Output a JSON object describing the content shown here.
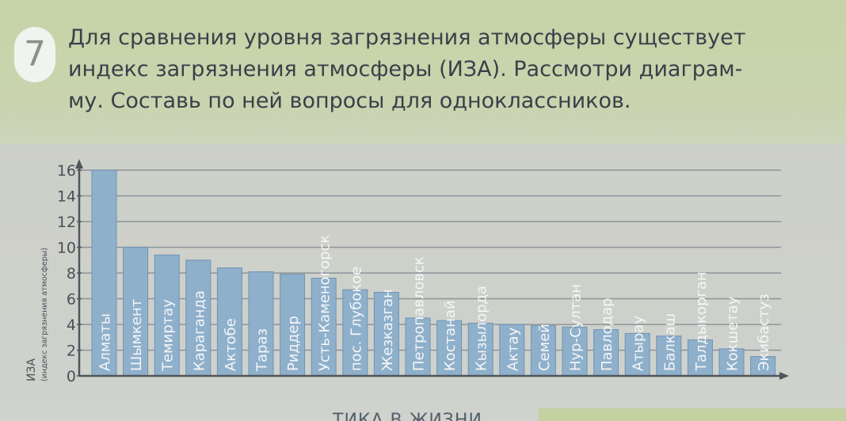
{
  "task": {
    "number": "7",
    "lines": [
      "Для сравнения уровня загрязнения атмосферы существует",
      "индекс загрязнения атмосферы (ИЗА). Рассмотри диаграм-",
      "му. Составь по ней вопросы для одноклассников."
    ]
  },
  "footer": {
    "text": "ТИКА В ЖИЗНИ"
  },
  "colors": {
    "bar_fill": "#8fb0cb",
    "bar_stroke": "#6f93b3",
    "grid": "#8d9399",
    "axis": "#4f555c",
    "text": "#4a5058",
    "label": "#f4f6f8"
  },
  "chart_data": {
    "type": "bar",
    "ylabel": "ИЗА",
    "ylabel_sub": "(индекс загрязнения атмосферы)",
    "xlabel": "",
    "ylim": [
      0,
      16
    ],
    "yticks": [
      0,
      2,
      4,
      6,
      8,
      10,
      12,
      14,
      16
    ],
    "grid": true,
    "categories": [
      "Алматы",
      "Шымкент",
      "Темиртау",
      "Караганда",
      "Актобе",
      "Тараз",
      "Риддер",
      "Усть-Каменогорск",
      "пос. Глубокое",
      "Жезказган",
      "Петропавловск",
      "Костанай",
      "Кызылорда",
      "Актау",
      "Семей",
      "Нур-Султан",
      "Павлодар",
      "Атырау",
      "Балкаш",
      "Талдыкорган",
      "Кокшетау",
      "Экибастуз"
    ],
    "values": [
      16,
      10,
      9.4,
      9,
      8.4,
      8.1,
      7.9,
      7.6,
      6.7,
      6.5,
      4.5,
      4.3,
      4.1,
      4,
      3.9,
      3.8,
      3.6,
      3.3,
      3.1,
      2.8,
      2.1,
      1.5
    ]
  }
}
